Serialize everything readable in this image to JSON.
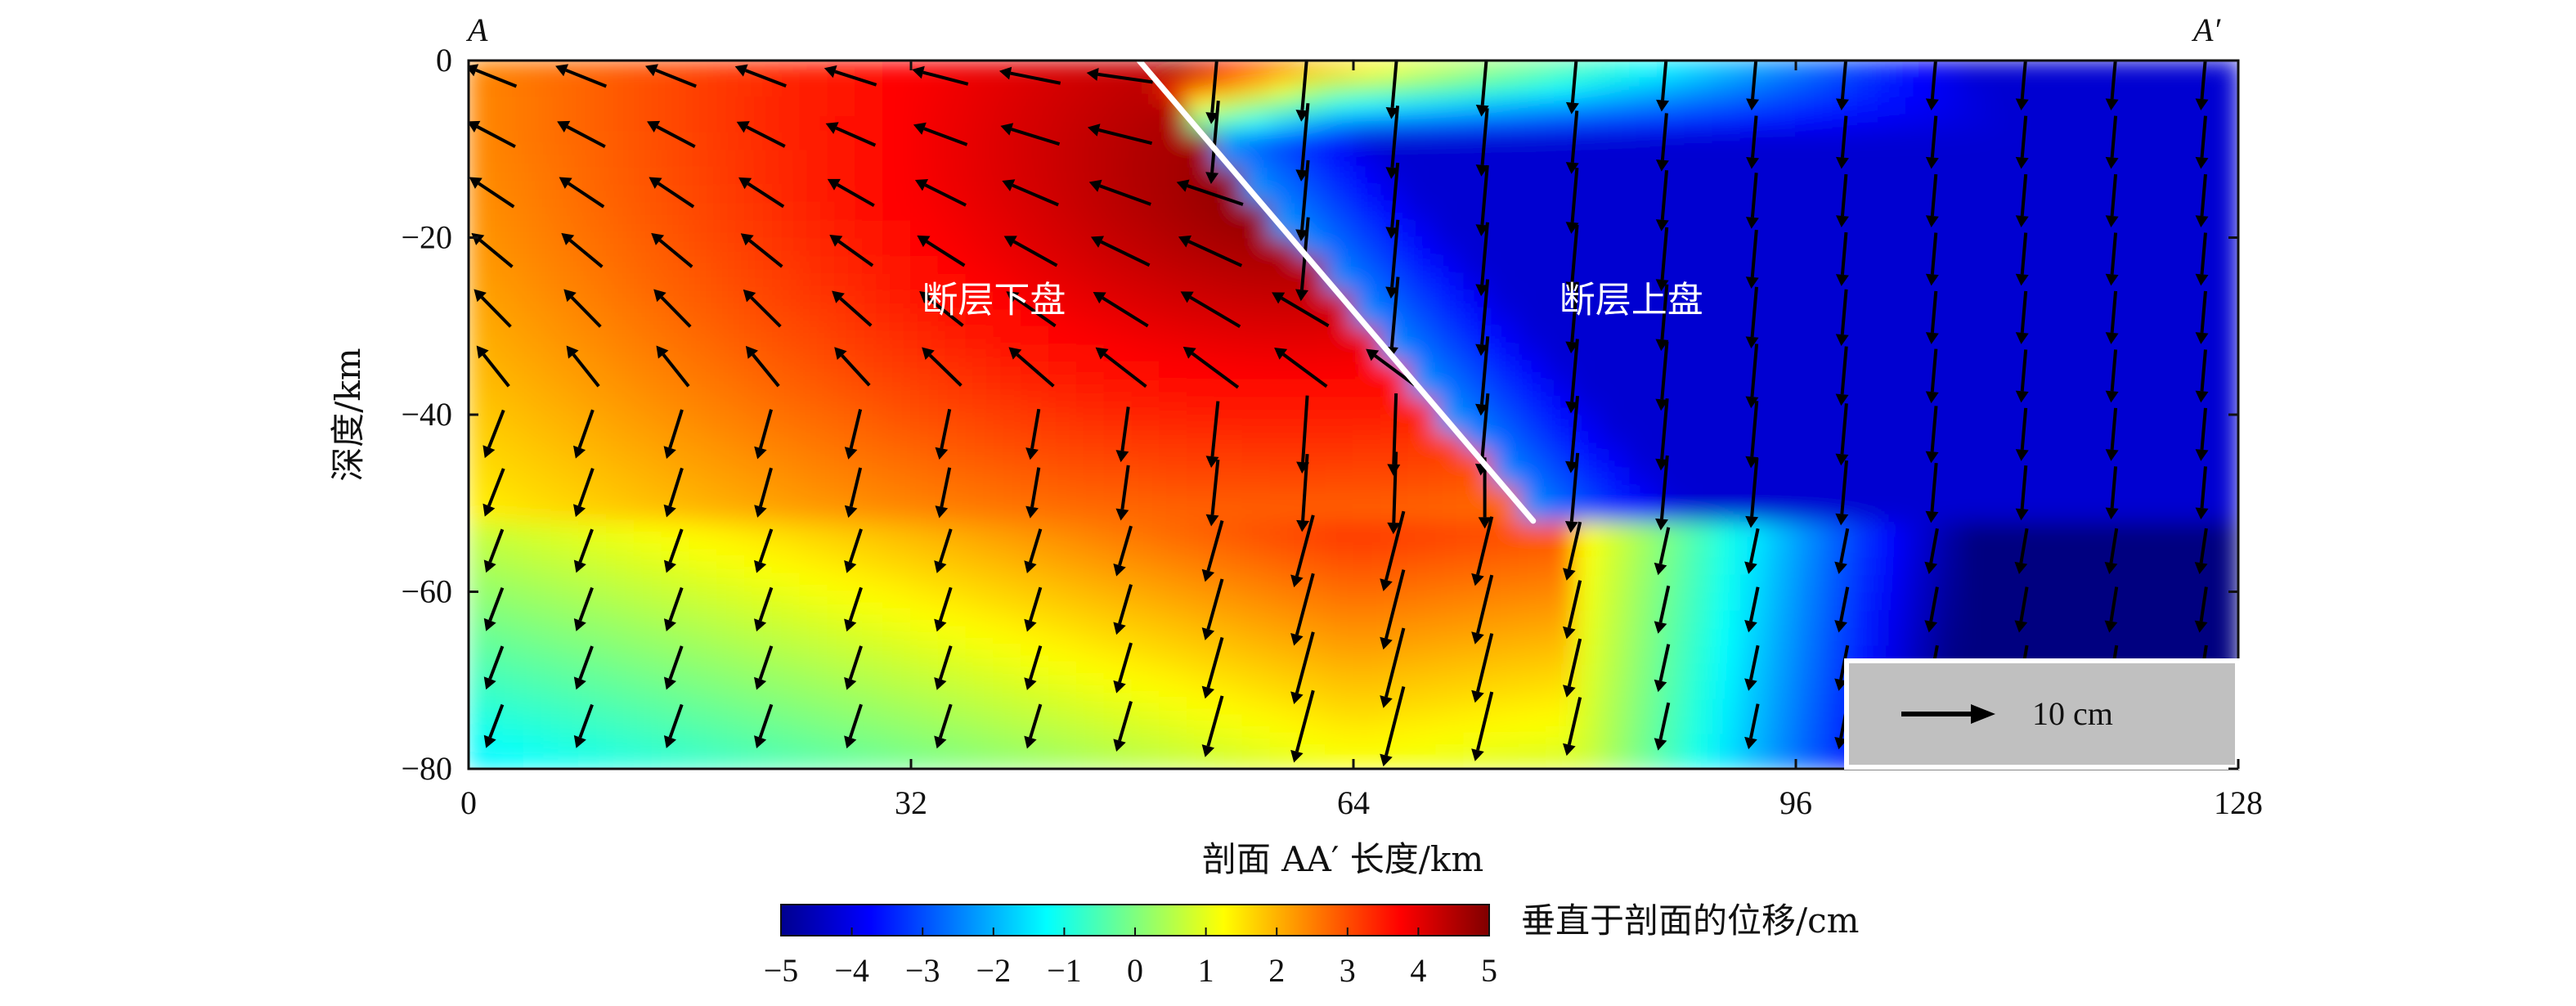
{
  "chart_data": {
    "type": "heatmap",
    "title": "",
    "section_start_label": "A",
    "section_end_label": "A′",
    "xlabel": "剖面 AA′ 长度/km",
    "ylabel": "深度/km",
    "xlim": [
      0,
      128
    ],
    "ylim": [
      -80,
      0
    ],
    "x_ticks": [
      0,
      32,
      64,
      96,
      128
    ],
    "y_ticks": [
      0,
      -20,
      -40,
      -60,
      -80
    ],
    "x_tick_labels": [
      "0",
      "32",
      "64",
      "96",
      "128"
    ],
    "y_tick_labels": [
      "0",
      "−20",
      "−40",
      "−60",
      "−80"
    ],
    "colorbar": {
      "label": "垂直于剖面的位移/cm",
      "range": [
        -5,
        5
      ],
      "ticks": [
        -5,
        -4,
        -3,
        -2,
        -1,
        0,
        1,
        2,
        3,
        4,
        5
      ],
      "tick_labels": [
        "−5",
        "−4",
        "−3",
        "−2",
        "−1",
        "0",
        "1",
        "2",
        "3",
        "4",
        "5"
      ],
      "colormap": "jet"
    },
    "fault_trace": {
      "from": [
        48.5,
        0
      ],
      "to": [
        77,
        -52
      ],
      "color": "#ffffff"
    },
    "region_labels": [
      {
        "text": "断层下盘",
        "x": 38,
        "y": -27
      },
      {
        "text": "断层上盘",
        "x": 77,
        "y": -27
      }
    ],
    "scale_arrow": {
      "label": "10 cm",
      "length_cm": 10
    },
    "vectors_note_colors": {
      "arrow": "#000000"
    }
  }
}
